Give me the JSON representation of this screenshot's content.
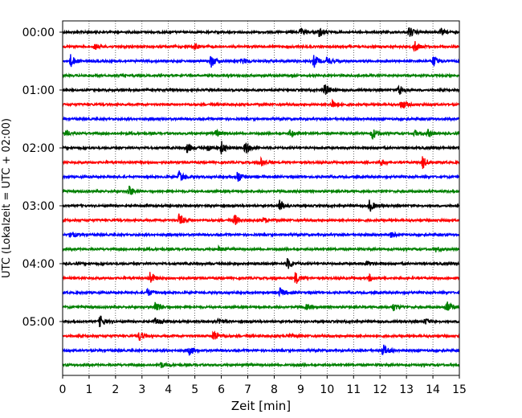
{
  "chart_data": {
    "type": "line",
    "subtype": "helicorder",
    "title": "",
    "xlabel": "Zeit  [min]",
    "ylabel": "UTC (Lokalzeit = UTC + 02:00)",
    "xlim": [
      0,
      15
    ],
    "x_ticks": [
      "0",
      "1",
      "2",
      "3",
      "4",
      "5",
      "6",
      "7",
      "8",
      "9",
      "10",
      "11",
      "12",
      "13",
      "14",
      "15"
    ],
    "y_tick_labels": [
      "00:00",
      "01:00",
      "02:00",
      "03:00",
      "04:00",
      "05:00"
    ],
    "grid": "vertical dotted lines at each minute",
    "trace_minutes": 15,
    "colors": [
      "#000000",
      "#ff0000",
      "#0000ff",
      "#008000"
    ],
    "traces": [
      {
        "label": "00:00",
        "color": "#000000",
        "events": [
          [
            9.0,
            0.5
          ],
          [
            9.7,
            0.8
          ],
          [
            13.1,
            0.9
          ],
          [
            14.3,
            0.5
          ]
        ]
      },
      {
        "label": "",
        "color": "#ff0000",
        "events": [
          [
            1.2,
            0.5
          ],
          [
            5.0,
            0.4
          ],
          [
            13.3,
            0.9
          ]
        ]
      },
      {
        "label": "",
        "color": "#0000ff",
        "events": [
          [
            0.3,
            1.0
          ],
          [
            5.6,
            1.0
          ],
          [
            6.8,
            0.5
          ],
          [
            9.5,
            1.0
          ],
          [
            10.0,
            0.7
          ],
          [
            14.0,
            1.0
          ]
        ]
      },
      {
        "label": "",
        "color": "#008000",
        "events": []
      },
      {
        "label": "01:00",
        "color": "#000000",
        "events": [
          [
            9.9,
            1.0
          ],
          [
            12.7,
            1.0
          ]
        ]
      },
      {
        "label": "",
        "color": "#ff0000",
        "events": [
          [
            10.2,
            0.8
          ],
          [
            12.8,
            0.8
          ]
        ]
      },
      {
        "label": "",
        "color": "#0000ff",
        "events": []
      },
      {
        "label": "",
        "color": "#008000",
        "events": [
          [
            0.1,
            0.5
          ],
          [
            5.8,
            0.5
          ],
          [
            8.6,
            0.5
          ],
          [
            11.7,
            1.0
          ],
          [
            13.3,
            0.5
          ],
          [
            13.8,
            0.6
          ]
        ]
      },
      {
        "label": "02:00",
        "color": "#000000",
        "events": [
          [
            4.7,
            0.8
          ],
          [
            5.5,
            0.5
          ],
          [
            6.0,
            1.0
          ],
          [
            6.9,
            1.0
          ]
        ]
      },
      {
        "label": "",
        "color": "#ff0000",
        "events": [
          [
            7.5,
            0.6
          ],
          [
            12.0,
            0.6
          ],
          [
            13.6,
            1.0
          ]
        ]
      },
      {
        "label": "",
        "color": "#0000ff",
        "events": [
          [
            4.4,
            1.0
          ],
          [
            6.6,
            1.0
          ]
        ]
      },
      {
        "label": "",
        "color": "#008000",
        "events": [
          [
            2.5,
            0.9
          ]
        ]
      },
      {
        "label": "03:00",
        "color": "#000000",
        "events": [
          [
            8.2,
            1.0
          ],
          [
            11.6,
            1.0
          ]
        ]
      },
      {
        "label": "",
        "color": "#ff0000",
        "events": [
          [
            4.4,
            1.0
          ],
          [
            6.5,
            0.9
          ],
          [
            7.6,
            0.4
          ]
        ]
      },
      {
        "label": "",
        "color": "#0000ff",
        "events": [
          [
            0.3,
            0.6
          ],
          [
            12.4,
            0.5
          ]
        ]
      },
      {
        "label": "",
        "color": "#008000",
        "events": [
          [
            5.9,
            0.4
          ],
          [
            14.1,
            0.4
          ]
        ]
      },
      {
        "label": "04:00",
        "color": "#000000",
        "events": [
          [
            8.5,
            0.9
          ],
          [
            11.5,
            0.4
          ]
        ]
      },
      {
        "label": "",
        "color": "#ff0000",
        "events": [
          [
            3.3,
            1.0
          ],
          [
            8.8,
            1.0
          ],
          [
            11.6,
            0.5
          ]
        ]
      },
      {
        "label": "",
        "color": "#0000ff",
        "events": [
          [
            3.2,
            0.6
          ],
          [
            8.2,
            0.8
          ]
        ]
      },
      {
        "label": "",
        "color": "#008000",
        "events": [
          [
            3.5,
            1.0
          ],
          [
            9.2,
            0.4
          ],
          [
            12.5,
            0.6
          ],
          [
            14.5,
            1.0
          ]
        ]
      },
      {
        "label": "05:00",
        "color": "#000000",
        "events": [
          [
            1.4,
            1.0
          ],
          [
            3.5,
            0.6
          ],
          [
            5.9,
            0.5
          ],
          [
            13.7,
            0.5
          ]
        ]
      },
      {
        "label": "",
        "color": "#ff0000",
        "events": [
          [
            2.9,
            0.8
          ],
          [
            5.7,
            1.0
          ],
          [
            8.5,
            0.4
          ]
        ]
      },
      {
        "label": "",
        "color": "#0000ff",
        "events": [
          [
            4.8,
            0.8
          ],
          [
            12.1,
            1.0
          ]
        ]
      },
      {
        "label": "",
        "color": "#008000",
        "events": [
          [
            3.7,
            0.5
          ]
        ]
      }
    ]
  }
}
